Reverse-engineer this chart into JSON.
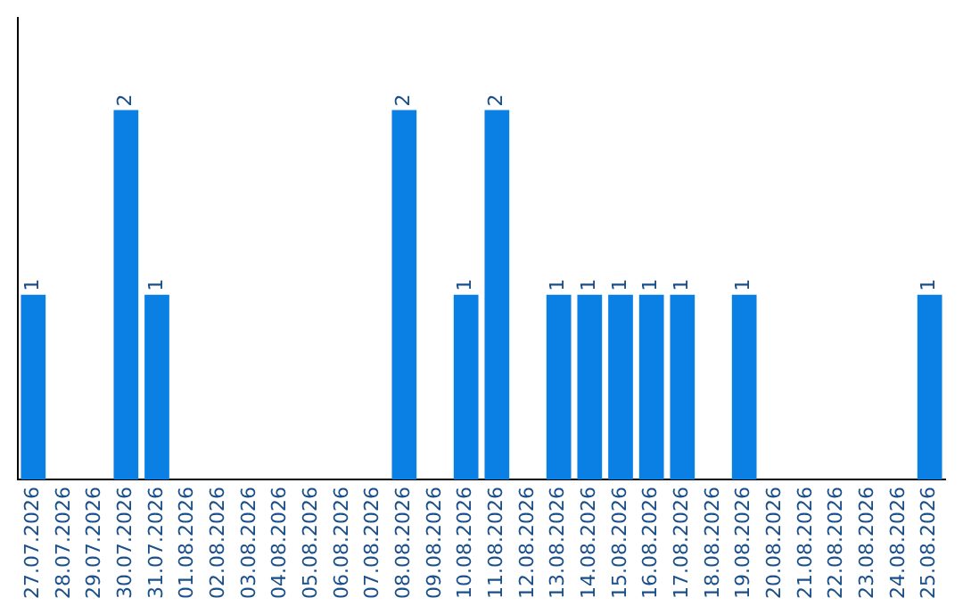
{
  "chart_data": {
    "type": "bar",
    "categories": [
      "27.07.2026",
      "28.07.2026",
      "29.07.2026",
      "30.07.2026",
      "31.07.2026",
      "01.08.2026",
      "02.08.2026",
      "03.08.2026",
      "04.08.2026",
      "05.08.2026",
      "06.08.2026",
      "07.08.2026",
      "08.08.2026",
      "09.08.2026",
      "10.08.2026",
      "11.08.2026",
      "12.08.2026",
      "13.08.2026",
      "14.08.2026",
      "15.08.2026",
      "16.08.2026",
      "17.08.2026",
      "18.08.2026",
      "19.08.2026",
      "20.08.2026",
      "21.08.2026",
      "22.08.2026",
      "23.08.2026",
      "24.08.2026",
      "25.08.2026"
    ],
    "values": [
      1,
      0,
      0,
      2,
      1,
      0,
      0,
      0,
      0,
      0,
      0,
      0,
      2,
      0,
      1,
      2,
      0,
      1,
      1,
      1,
      1,
      1,
      0,
      1,
      0,
      0,
      0,
      0,
      0,
      1
    ],
    "value_labels": [
      "1",
      null,
      null,
      "2",
      "1",
      null,
      null,
      null,
      null,
      null,
      null,
      null,
      "2",
      null,
      "1",
      "2",
      null,
      "1",
      "1",
      "1",
      "1",
      "1",
      null,
      "1",
      null,
      null,
      null,
      null,
      null,
      "1"
    ],
    "color": "#0a7fe4",
    "grid": false,
    "legend": false,
    "tick_labels": "x"
  }
}
